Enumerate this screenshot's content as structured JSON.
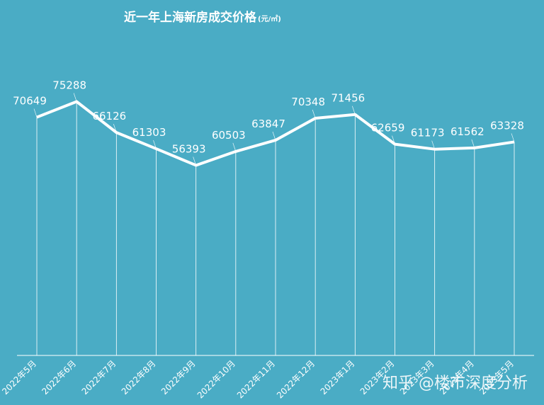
{
  "chart_data": {
    "type": "line",
    "title": "近一年上海新房成交价格",
    "unit": "(元/㎡)",
    "categories": [
      "2022年5月",
      "2022年6月",
      "2022年7月",
      "2022年8月",
      "2022年9月",
      "2022年10月",
      "2022年11月",
      "2022年12月",
      "2023年1月",
      "2023年2月",
      "2023年3月",
      "2023年4月",
      "2023年5月"
    ],
    "values": [
      70649,
      75288,
      66126,
      61303,
      56393,
      60503,
      63847,
      70348,
      71456,
      62659,
      61173,
      61562,
      63328
    ],
    "color": "#ffffff",
    "ylim": [
      0,
      105000
    ]
  },
  "watermark": "知乎 @楼市深度分析"
}
